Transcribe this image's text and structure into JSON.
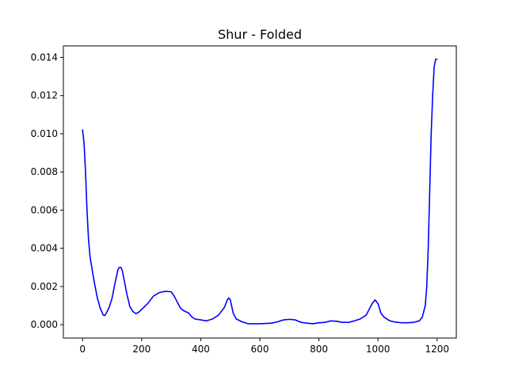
{
  "chart_data": {
    "type": "line",
    "title": "Shur - Folded",
    "xlabel": "",
    "ylabel": "",
    "xlim": [
      -65,
      1265
    ],
    "ylim": [
      -0.0007,
      0.0146
    ],
    "xticks": [
      0,
      200,
      400,
      600,
      800,
      1000,
      1200
    ],
    "xtick_labels": [
      "0",
      "200",
      "400",
      "600",
      "800",
      "1000",
      "1200"
    ],
    "yticks": [
      0.0,
      0.002,
      0.004,
      0.006,
      0.008,
      0.01,
      0.012,
      0.014
    ],
    "ytick_labels": [
      "0.000",
      "0.002",
      "0.004",
      "0.006",
      "0.008",
      "0.010",
      "0.012",
      "0.014"
    ],
    "grid": false,
    "series": [
      {
        "color": "#0000ff",
        "x": [
          0,
          5,
          10,
          15,
          20,
          25,
          30,
          40,
          50,
          60,
          70,
          75,
          80,
          90,
          100,
          110,
          120,
          125,
          130,
          135,
          140,
          150,
          160,
          170,
          180,
          190,
          200,
          220,
          240,
          260,
          280,
          300,
          310,
          320,
          330,
          340,
          360,
          370,
          380,
          400,
          420,
          440,
          460,
          480,
          490,
          495,
          500,
          510,
          520,
          540,
          560,
          600,
          640,
          660,
          680,
          700,
          720,
          740,
          760,
          780,
          800,
          820,
          840,
          860,
          880,
          900,
          920,
          940,
          960,
          970,
          980,
          990,
          1000,
          1010,
          1020,
          1040,
          1060,
          1080,
          1100,
          1120,
          1140,
          1150,
          1160,
          1165,
          1170,
          1175,
          1180,
          1185,
          1190,
          1195,
          1200
        ],
        "y": [
          0.0102,
          0.0095,
          0.008,
          0.006,
          0.0045,
          0.0036,
          0.0031,
          0.0022,
          0.0014,
          0.00085,
          0.0005,
          0.00048,
          0.0006,
          0.0009,
          0.0014,
          0.0022,
          0.0029,
          0.003,
          0.003,
          0.0028,
          0.0024,
          0.0016,
          0.00095,
          0.0007,
          0.00058,
          0.00065,
          0.0008,
          0.0011,
          0.0015,
          0.00168,
          0.00175,
          0.00172,
          0.0015,
          0.0012,
          0.0009,
          0.00075,
          0.0006,
          0.0004,
          0.0003,
          0.00025,
          0.0002,
          0.0003,
          0.0005,
          0.0009,
          0.0013,
          0.0014,
          0.0013,
          0.0006,
          0.0003,
          0.00015,
          5e-05,
          5e-05,
          8e-05,
          0.00015,
          0.00025,
          0.00028,
          0.00025,
          0.00012,
          8e-05,
          5e-05,
          0.0001,
          0.00012,
          0.0002,
          0.00018,
          0.00012,
          0.00012,
          0.0002,
          0.0003,
          0.0005,
          0.0008,
          0.0011,
          0.0013,
          0.0011,
          0.0006,
          0.0004,
          0.0002,
          0.00013,
          0.0001,
          0.0001,
          0.00012,
          0.0002,
          0.0004,
          0.001,
          0.002,
          0.004,
          0.007,
          0.01,
          0.012,
          0.0135,
          0.0139,
          0.0139
        ]
      }
    ]
  }
}
